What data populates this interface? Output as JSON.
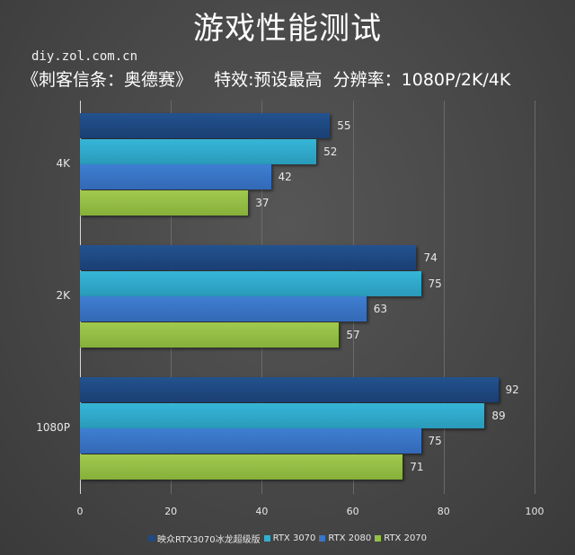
{
  "header": {
    "title": "游戏性能测试",
    "site": "diy.zol.com.cn",
    "subtitle": "《刺客信条：奥德赛》    特效:预设最高  分辨率：1080P/2K/4K"
  },
  "colors": {
    "series": [
      "#1f4a85",
      "#31aed0",
      "#3a75c8",
      "#93c146"
    ],
    "background": "#4a4a4a"
  },
  "chart_data": {
    "type": "bar",
    "orientation": "horizontal",
    "title": "游戏性能测试",
    "subtitle": "《刺客信条：奥德赛》 特效:预设最高 分辨率：1080P/2K/4K",
    "categories": [
      "4K",
      "2K",
      "1080P"
    ],
    "series": [
      {
        "name": "映众RTX3070冰龙超级版",
        "values": [
          55,
          74,
          92
        ]
      },
      {
        "name": "RTX 3070",
        "values": [
          52,
          75,
          89
        ]
      },
      {
        "name": "RTX 2080",
        "values": [
          42,
          63,
          75
        ]
      },
      {
        "name": "RTX 2070",
        "values": [
          37,
          57,
          71
        ]
      }
    ],
    "xlabel": "",
    "ylabel": "",
    "xlim": [
      0,
      100
    ],
    "xticks": [
      "0",
      "20",
      "40",
      "60",
      "80",
      "100"
    ],
    "grid": true,
    "legend_position": "bottom",
    "data_labels": true
  },
  "axis": {
    "ticks": [
      "0",
      "20",
      "40",
      "60",
      "80",
      "100"
    ]
  },
  "legend": [
    {
      "label": "映众RTX3070冰龙超级版"
    },
    {
      "label": "RTX 3070"
    },
    {
      "label": "RTX 2080"
    },
    {
      "label": "RTX 2070"
    }
  ]
}
